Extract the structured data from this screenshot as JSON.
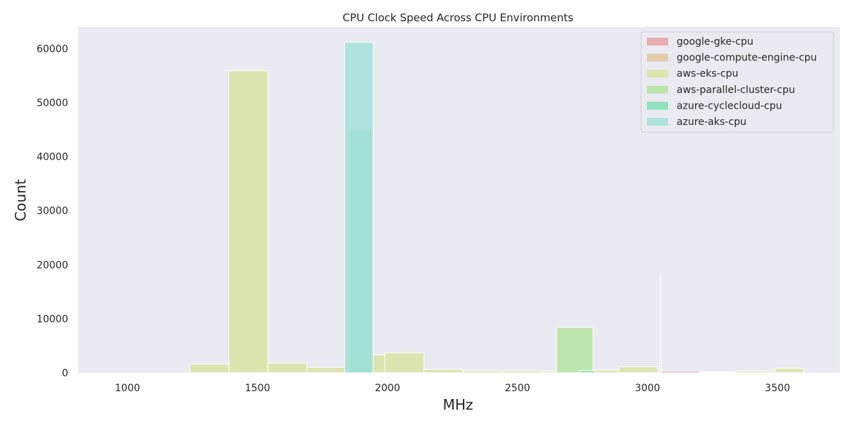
{
  "chart_data": {
    "type": "bar",
    "title": "CPU Clock Speed Across CPU Environments",
    "xlabel": "MHz",
    "ylabel": "Count",
    "xlim": [
      810,
      3740
    ],
    "ylim": [
      0,
      64000
    ],
    "xticks": [
      1000,
      1500,
      2000,
      2500,
      3000,
      3500
    ],
    "yticks": [
      0,
      10000,
      20000,
      30000,
      40000,
      50000,
      60000
    ],
    "grid": false,
    "legend_position": "top-right",
    "series": [
      {
        "name": "google-gke-cpu",
        "color": "#e8a2a4",
        "bins": [
          {
            "x0": 3050,
            "x1": 3200,
            "value": 300
          }
        ]
      },
      {
        "name": "google-compute-engine-cpu",
        "color": "#e3c79f",
        "bins": [
          {
            "x0": 3200,
            "x1": 3400,
            "value": 150
          }
        ]
      },
      {
        "name": "aws-eks-cpu",
        "color": "#d9e4a4",
        "bins": [
          {
            "x0": 1240,
            "x1": 1390,
            "value": 1600
          },
          {
            "x0": 1390,
            "x1": 1540,
            "value": 55900
          },
          {
            "x0": 1540,
            "x1": 1690,
            "value": 1800
          },
          {
            "x0": 1690,
            "x1": 1840,
            "value": 1000
          },
          {
            "x0": 1840,
            "x1": 1990,
            "value": 3300
          },
          {
            "x0": 1990,
            "x1": 2140,
            "value": 3700
          },
          {
            "x0": 2140,
            "x1": 2290,
            "value": 600
          },
          {
            "x0": 2290,
            "x1": 2440,
            "value": 350
          },
          {
            "x0": 2440,
            "x1": 2590,
            "value": 350
          },
          {
            "x0": 2590,
            "x1": 2740,
            "value": 300
          },
          {
            "x0": 2740,
            "x1": 2890,
            "value": 500
          },
          {
            "x0": 2890,
            "x1": 3040,
            "value": 1100
          },
          {
            "x0": 3340,
            "x1": 3490,
            "value": 300
          },
          {
            "x0": 3490,
            "x1": 3600,
            "value": 800
          }
        ]
      },
      {
        "name": "aws-parallel-cluster-cpu",
        "color": "#b6e3a2",
        "bins": [
          {
            "x0": 2650,
            "x1": 2790,
            "value": 8400
          }
        ]
      },
      {
        "name": "azure-cyclecloud-cpu",
        "color": "#82dfb5",
        "bins": [
          {
            "x0": 1850,
            "x1": 1940,
            "value": 45000
          },
          {
            "x0": 2740,
            "x1": 2800,
            "value": 400
          }
        ]
      },
      {
        "name": "azure-aks-cpu",
        "color": "#a4e0d9",
        "bins": [
          {
            "x0": 1835,
            "x1": 1945,
            "value": 61200
          },
          {
            "x0": 3048,
            "x1": 3052,
            "value": 18200
          }
        ]
      }
    ]
  }
}
